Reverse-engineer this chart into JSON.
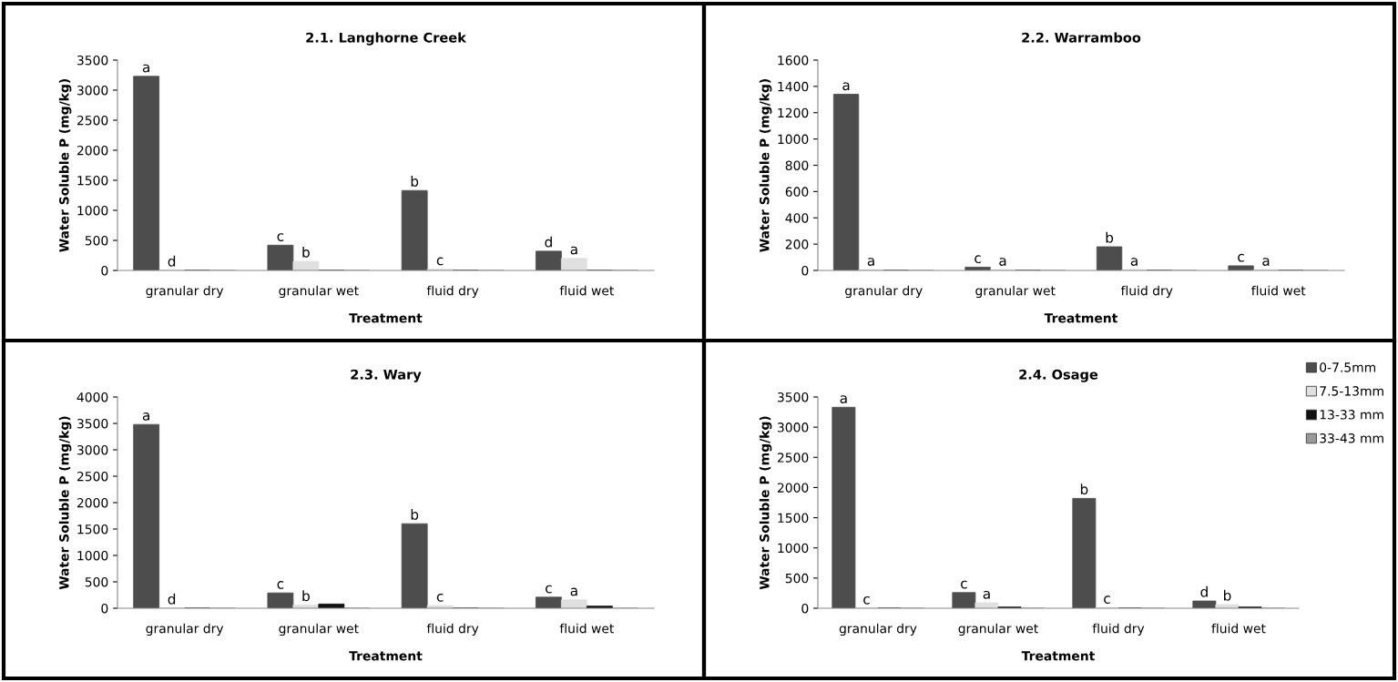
{
  "chart_data": [
    {
      "type": "bar",
      "title": "2.1. Langhorne Creek",
      "xlabel": "Treatment",
      "ylabel": "Water Soluble P (mg/kg)",
      "categories": [
        "granular dry",
        "granular wet",
        "fluid dry",
        "fluid wet"
      ],
      "ylim": [
        0,
        3500
      ],
      "yticks": [
        0,
        500,
        1000,
        1500,
        2000,
        2500,
        3000,
        3500
      ],
      "grid": false,
      "legend": false,
      "series": [
        {
          "color": "#4d4d4d",
          "values": [
            3230,
            420,
            1330,
            320
          ],
          "value_labels": [
            "a",
            "c",
            "b",
            "d"
          ]
        },
        {
          "color": "#e0e0e0",
          "values": [
            0,
            150,
            20,
            200
          ],
          "value_labels": [
            "d",
            "b",
            "c",
            "a"
          ]
        },
        {
          "color": "#111111",
          "values": [
            0,
            0,
            0,
            0
          ]
        },
        {
          "color": "#999999",
          "values": [
            0,
            0,
            0,
            0
          ]
        }
      ]
    },
    {
      "type": "bar",
      "title": "2.2. Warramboo",
      "xlabel": "Treatment",
      "ylabel": "Water Soluble P (mg/kg)",
      "categories": [
        "granular dry",
        "granular wet",
        "fluid dry",
        "fluid wet"
      ],
      "ylim": [
        0,
        1600
      ],
      "yticks": [
        0,
        200,
        400,
        600,
        800,
        1000,
        1200,
        1400,
        1600
      ],
      "grid": false,
      "legend": false,
      "series": [
        {
          "color": "#4d4d4d",
          "values": [
            1340,
            25,
            180,
            35
          ],
          "value_labels": [
            "a",
            "c",
            "b",
            "c"
          ]
        },
        {
          "color": "#e0e0e0",
          "values": [
            5,
            5,
            5,
            5
          ],
          "value_labels": [
            "a",
            "a",
            "a",
            "a"
          ]
        },
        {
          "color": "#111111",
          "values": [
            0,
            0,
            0,
            0
          ]
        },
        {
          "color": "#999999",
          "values": [
            0,
            0,
            0,
            0
          ]
        }
      ]
    },
    {
      "type": "bar",
      "title": "2.3. Wary",
      "xlabel": "Treatment",
      "ylabel": "Water Soluble P (mg/kg)",
      "categories": [
        "granular dry",
        "granular wet",
        "fluid dry",
        "fluid wet"
      ],
      "ylim": [
        0,
        4000
      ],
      "yticks": [
        0,
        500,
        1000,
        1500,
        2000,
        2500,
        3000,
        3500,
        4000
      ],
      "grid": false,
      "legend": false,
      "series": [
        {
          "color": "#4d4d4d",
          "values": [
            3480,
            290,
            1600,
            210
          ],
          "value_labels": [
            "a",
            "c",
            "b",
            "c"
          ]
        },
        {
          "color": "#e0e0e0",
          "values": [
            0,
            60,
            50,
            160
          ],
          "value_labels": [
            "d",
            "b",
            "c",
            "a"
          ]
        },
        {
          "color": "#111111",
          "values": [
            0,
            80,
            0,
            40
          ]
        },
        {
          "color": "#999999",
          "values": [
            0,
            0,
            0,
            0
          ]
        }
      ]
    },
    {
      "type": "bar",
      "title": "2.4. Osage",
      "xlabel": "Treatment",
      "ylabel": "Water Soluble P (mg/kg)",
      "categories": [
        "granular dry",
        "granular wet",
        "fluid dry",
        "fluid wet"
      ],
      "ylim": [
        0,
        3500
      ],
      "yticks": [
        0,
        500,
        1000,
        1500,
        2000,
        2500,
        3000,
        3500
      ],
      "grid": false,
      "legend": "right",
      "series": [
        {
          "name": "0-7.5mm",
          "color": "#4d4d4d",
          "values": [
            3330,
            260,
            1820,
            120
          ],
          "value_labels": [
            "a",
            "c",
            "b",
            "d"
          ]
        },
        {
          "name": "7.5-13mm",
          "color": "#e0e0e0",
          "values": [
            0,
            90,
            10,
            60
          ],
          "value_labels": [
            "c",
            "a",
            "c",
            "b"
          ]
        },
        {
          "name": "13-33 mm",
          "color": "#111111",
          "values": [
            0,
            20,
            0,
            20
          ]
        },
        {
          "name": "33-43 mm",
          "color": "#999999",
          "values": [
            0,
            0,
            0,
            0
          ]
        }
      ]
    }
  ]
}
